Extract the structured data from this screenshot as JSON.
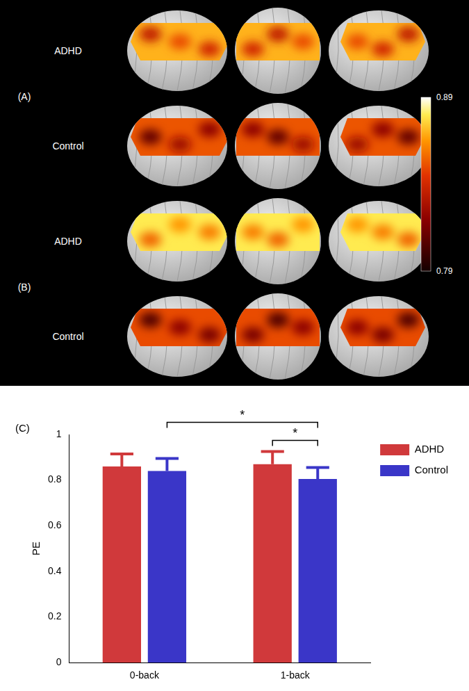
{
  "panels": [
    {
      "label": "(A)",
      "rows": [
        {
          "label": "ADHD"
        },
        {
          "label": "Control"
        }
      ]
    },
    {
      "label": "(B)",
      "rows": [
        {
          "label": "ADHD"
        },
        {
          "label": "Control"
        }
      ]
    }
  ],
  "colorbar": {
    "range": [
      0.79,
      0.89
    ],
    "ticks": [
      0.79,
      0.89
    ]
  },
  "chart_data": {
    "type": "bar",
    "panel_label": "(C)",
    "y_label": "PE",
    "categories": [
      "0-back",
      "1-back"
    ],
    "series": [
      {
        "name": "ADHD",
        "color": "#d0393b",
        "values": [
          0.86,
          0.87
        ],
        "errors": [
          0.055,
          0.055
        ]
      },
      {
        "name": "Control",
        "color": "#3a36c8",
        "values": [
          0.84,
          0.805
        ],
        "errors": [
          0.055,
          0.05
        ]
      }
    ],
    "ylim": [
      0,
      1
    ],
    "yticks": [
      0,
      0.2,
      0.4,
      0.6,
      0.8,
      1
    ],
    "grid": false,
    "legend": "top right",
    "significance": [
      {
        "from": {
          "category": "0-back",
          "series": "Control"
        },
        "to": {
          "category": "1-back",
          "series": "Control"
        },
        "label": "*"
      },
      {
        "from": {
          "category": "1-back",
          "series": "ADHD"
        },
        "to": {
          "category": "1-back",
          "series": "Control"
        },
        "label": "*"
      }
    ]
  }
}
